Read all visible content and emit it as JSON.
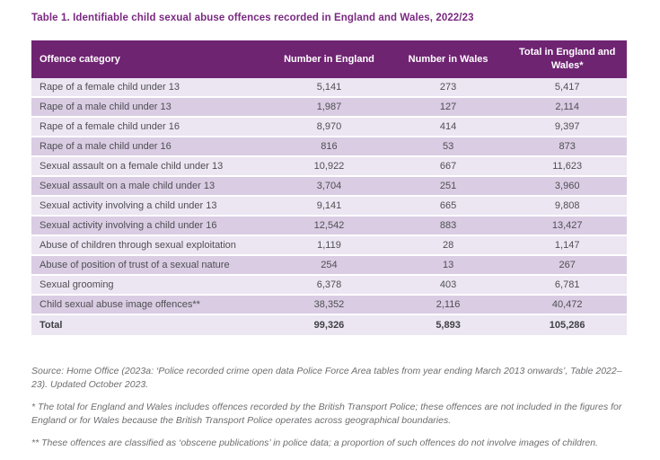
{
  "title": "Table 1. Identifiable child sexual abuse offences recorded in England and Wales, 2022/23",
  "columns": [
    "Offence category",
    "Number in England",
    "Number in Wales",
    "Total in England and Wales*"
  ],
  "rows": [
    {
      "category": "Rape of a female child under 13",
      "england": "5,141",
      "wales": "273",
      "total": "5,417"
    },
    {
      "category": "Rape of a male child under 13",
      "england": "1,987",
      "wales": "127",
      "total": "2,114"
    },
    {
      "category": "Rape of a female child under 16",
      "england": "8,970",
      "wales": "414",
      "total": "9,397"
    },
    {
      "category": "Rape of a male child under 16",
      "england": "816",
      "wales": "53",
      "total": "873"
    },
    {
      "category": "Sexual assault on a female child under 13",
      "england": "10,922",
      "wales": "667",
      "total": "11,623"
    },
    {
      "category": "Sexual assault on a male child under 13",
      "england": "3,704",
      "wales": "251",
      "total": "3,960"
    },
    {
      "category": "Sexual activity involving a child under 13",
      "england": "9,141",
      "wales": "665",
      "total": "9,808"
    },
    {
      "category": "Sexual activity involving a child under 16",
      "england": "12,542",
      "wales": "883",
      "total": "13,427"
    },
    {
      "category": "Abuse of children through sexual exploitation",
      "england": "1,119",
      "wales": "28",
      "total": "1,147"
    },
    {
      "category": "Abuse of position of trust of a sexual nature",
      "england": "254",
      "wales": "13",
      "total": "267"
    },
    {
      "category": "Sexual grooming",
      "england": "6,378",
      "wales": "403",
      "total": "6,781"
    },
    {
      "category": "Child sexual abuse image offences**",
      "england": "38,352",
      "wales": "2,116",
      "total": "40,472"
    }
  ],
  "total_row": {
    "label": "Total",
    "england": "99,326",
    "wales": "5,893",
    "total": "105,286"
  },
  "notes": {
    "source": "Source: Home Office (2023a: ‘Police recorded crime open data Police Force Area tables from year ending March 2013 onwards’, Table 2022–23). Updated October 2023.",
    "note_star": "* The total for England and Wales includes offences recorded by the British Transport Police; these offences are not included in the figures for England or for Wales because the British Transport Police operates across geographical boundaries.",
    "note_double_star": "** These offences are classified as ‘obscene publications’ in police data; a proportion of such offences do not involve images of children."
  },
  "colors": {
    "brand_purple_header": "#6f2472",
    "title_purple": "#7a2982",
    "row_light": "#ece5f2",
    "row_dark": "#d9cce3",
    "body_text": "#4f4f52",
    "note_text": "#6e6e71"
  }
}
